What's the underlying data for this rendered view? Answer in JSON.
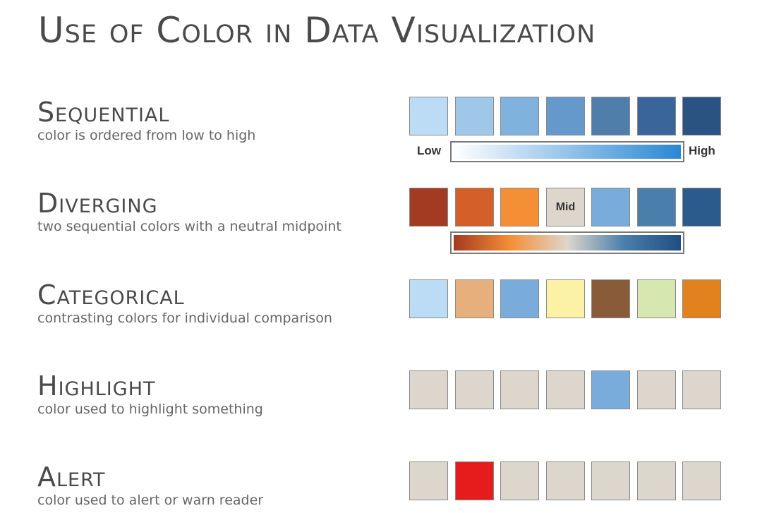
{
  "title": "Use of Color in Data Visualization",
  "sections": [
    {
      "key": "sequential",
      "title": "Sequential",
      "description": "color is ordered from low to high",
      "swatches": [
        "#bcdcf5",
        "#9fc8e8",
        "#7fb2dc",
        "#6598cb",
        "#4f7eab",
        "#3a659b",
        "#2a5282"
      ],
      "scale": {
        "low_label": "Low",
        "high_label": "High",
        "gradient": [
          "#ffffff",
          "#2a87d4"
        ]
      }
    },
    {
      "key": "diverging",
      "title": "Diverging",
      "description": "two sequential colors with a neutral midpoint",
      "swatches": [
        "#a33a22",
        "#d45f28",
        "#f48f35",
        "#ddd6cc",
        "#79acdb",
        "#4a7eab",
        "#2b5b8c"
      ],
      "mid_label": "Mid",
      "mid_index": 3,
      "scale": {
        "gradient": [
          "#a33a22",
          "#f48f35",
          "#ddd6cc",
          "#4a7eab",
          "#1f4f80"
        ]
      }
    },
    {
      "key": "categorical",
      "title": "Categorical",
      "description": "contrasting colors for individual comparison",
      "swatches": [
        "#bcdcf5",
        "#e6b07c",
        "#79acdb",
        "#fcf2a6",
        "#895b38",
        "#d6e7b0",
        "#e2821f"
      ]
    },
    {
      "key": "highlight",
      "title": "Highlight",
      "description": "color used to highlight something",
      "swatches": [
        "#ddd6cc",
        "#ddd6cc",
        "#ddd6cc",
        "#ddd6cc",
        "#79acdb",
        "#ddd6cc",
        "#ddd6cc"
      ]
    },
    {
      "key": "alert",
      "title": "Alert",
      "description": "color used to alert or warn reader",
      "swatches": [
        "#ddd6cc",
        "#e61c1c",
        "#ddd6cc",
        "#ddd6cc",
        "#ddd6cc",
        "#ddd6cc",
        "#ddd6cc"
      ]
    }
  ]
}
